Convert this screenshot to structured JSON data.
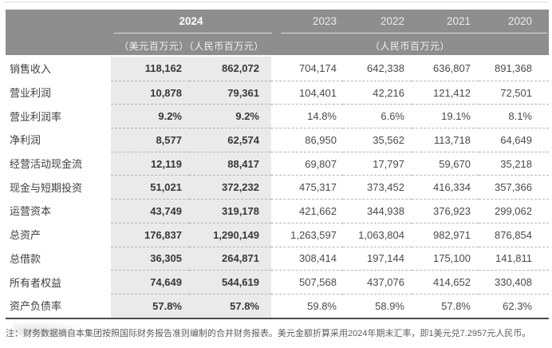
{
  "header": {
    "group_2024": "2024",
    "years": [
      "2023",
      "2022",
      "2021",
      "2020"
    ],
    "units_2024": "（美元百万元）（人民币百万元）",
    "units_rest": "（人民币百万元）"
  },
  "table": {
    "rows": [
      {
        "label": "销售收入",
        "values": [
          "118,162",
          "862,072",
          "704,174",
          "642,338",
          "636,807",
          "891,368"
        ]
      },
      {
        "label": "营业利润",
        "values": [
          "10,878",
          "79,361",
          "104,401",
          "42,216",
          "121,412",
          "72,501"
        ]
      },
      {
        "label": "营业利润率",
        "values": [
          "9.2%",
          "9.2%",
          "14.8%",
          "6.6%",
          "19.1%",
          "8.1%"
        ]
      },
      {
        "label": "净利润",
        "values": [
          "8,577",
          "62,574",
          "86,950",
          "35,562",
          "113,718",
          "64,649"
        ]
      },
      {
        "label": "经营活动现金流",
        "values": [
          "12,119",
          "88,417",
          "69,807",
          "17,797",
          "59,670",
          "35,218"
        ]
      },
      {
        "label": "现金与短期投资",
        "values": [
          "51,021",
          "372,232",
          "475,317",
          "373,452",
          "416,334",
          "357,366"
        ]
      },
      {
        "label": "运营资本",
        "values": [
          "43,749",
          "319,178",
          "421,662",
          "344,938",
          "376,923",
          "299,062"
        ]
      },
      {
        "label": "总资产",
        "values": [
          "176,837",
          "1,290,149",
          "1,263,597",
          "1,063,804",
          "982,971",
          "876,854"
        ]
      },
      {
        "label": "总借款",
        "values": [
          "36,305",
          "264,871",
          "308,414",
          "197,144",
          "175,100",
          "141,811"
        ]
      },
      {
        "label": "所有者权益",
        "values": [
          "74,649",
          "544,619",
          "507,568",
          "437,076",
          "414,652",
          "330,408"
        ]
      },
      {
        "label": "资产负债率",
        "values": [
          "57.8%",
          "57.8%",
          "59.8%",
          "58.9%",
          "57.8%",
          "62.3%"
        ]
      }
    ]
  },
  "note": "注：财务数据摘自本集团按照国际财务报告准则编制的合并财务报表。美元金额折算采用2024年期末汇率，即1美元兑7.2957元人民币。",
  "colors": {
    "header_bg": "#8e8e8e",
    "highlight_bg": "#eaeaea",
    "bottom_rule": "#4b4b4b",
    "note_text": "#5e5e5e"
  }
}
